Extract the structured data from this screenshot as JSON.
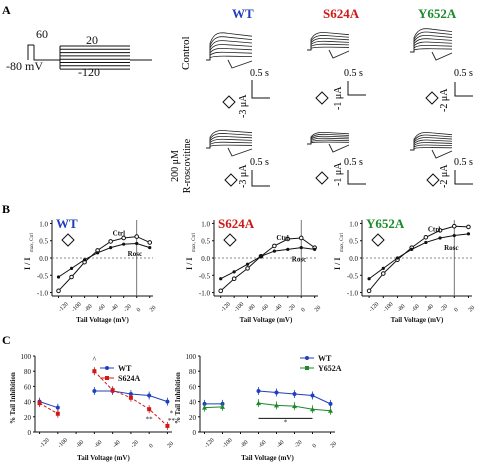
{
  "panel_labels": {
    "a": "A",
    "b": "B",
    "c": "C"
  },
  "protocol": {
    "hold_label": "-80 mV",
    "step_label": "60",
    "tail_top_label": "20",
    "tail_bottom_label": "-120"
  },
  "columns": {
    "wt": "WT",
    "s624a": "S624A",
    "y652a": "Y652A"
  },
  "colors": {
    "wt": "#1f3fbf",
    "s624a": "#d01818",
    "y652a": "#1a8a2a",
    "ink": "#111111"
  },
  "rows": {
    "control": "Control",
    "rosc_line1": "200 μM",
    "rosc_line2": "R-roscovitine"
  },
  "scale_bars": {
    "time": "0.5 s",
    "wt_current": "-3 μA",
    "s624a_current": "-1 μA",
    "y652a_current": "-2 μA"
  },
  "panel_b": {
    "ylabel": "I / I",
    "ylabel_sub": "max, Ctrl",
    "xlabel": "Tail Voltage (mV)",
    "ctrl_label": "Ctrl",
    "rosc_label": "Rosc",
    "y_ticks": [
      "1.0",
      "0.5",
      "0.0",
      "-0.5",
      "-1.0"
    ],
    "x_ticks": [
      "-120",
      "-100",
      "-80",
      "-60",
      "-40",
      "-20",
      "0",
      "20"
    ]
  },
  "panel_c": {
    "ylabel": "% Tail Inhibition",
    "xlabel": "Tail Voltage (mV)",
    "y_ticks": [
      "100",
      "80",
      "60",
      "40",
      "20",
      "0"
    ],
    "x_ticks": [
      "-120",
      "-100",
      "-80",
      "-60",
      "-40",
      "-20",
      "0",
      "20"
    ],
    "left_legend": [
      "WT",
      "S624A"
    ],
    "right_legend": [
      "WT",
      "Y652A"
    ],
    "significance": {
      "caret": "^",
      "single": "*",
      "double": "**",
      "triple": "**"
    }
  },
  "chart_data": [
    {
      "type": "line",
      "title": "WT",
      "xlabel": "Tail Voltage (mV)",
      "ylabel": "I / I max, Ctrl",
      "xlim": [
        -130,
        25
      ],
      "ylim": [
        -1.1,
        1.1
      ],
      "x": [
        -120,
        -100,
        -80,
        -60,
        -40,
        -20,
        0,
        20
      ],
      "series": [
        {
          "name": "Ctrl",
          "values": [
            -0.95,
            -0.55,
            -0.12,
            0.22,
            0.48,
            0.58,
            0.62,
            0.45
          ]
        },
        {
          "name": "Rosc",
          "values": [
            -0.55,
            -0.3,
            -0.05,
            0.15,
            0.3,
            0.4,
            0.42,
            0.3
          ]
        }
      ]
    },
    {
      "type": "line",
      "title": "S624A",
      "xlabel": "Tail Voltage (mV)",
      "ylabel": "I / I max, Ctrl",
      "xlim": [
        -130,
        25
      ],
      "ylim": [
        -1.1,
        1.1
      ],
      "x": [
        -120,
        -100,
        -80,
        -60,
        -40,
        -20,
        0,
        20
      ],
      "series": [
        {
          "name": "Ctrl",
          "values": [
            -0.95,
            -0.6,
            -0.3,
            0.05,
            0.35,
            0.55,
            0.58,
            0.3
          ]
        },
        {
          "name": "Rosc",
          "values": [
            -0.6,
            -0.4,
            -0.18,
            0.05,
            0.2,
            0.25,
            0.3,
            0.25
          ]
        }
      ]
    },
    {
      "type": "line",
      "title": "Y652A",
      "xlabel": "Tail Voltage (mV)",
      "ylabel": "I / I max, Ctrl",
      "xlim": [
        -130,
        25
      ],
      "ylim": [
        -1.1,
        1.1
      ],
      "x": [
        -120,
        -100,
        -80,
        -60,
        -40,
        -20,
        0,
        20
      ],
      "series": [
        {
          "name": "Ctrl",
          "values": [
            -0.95,
            -0.45,
            -0.05,
            0.3,
            0.6,
            0.8,
            0.92,
            0.9
          ]
        },
        {
          "name": "Rosc",
          "values": [
            -0.6,
            -0.3,
            0.0,
            0.25,
            0.45,
            0.58,
            0.65,
            0.7
          ]
        }
      ]
    },
    {
      "type": "line",
      "title": "",
      "xlabel": "Tail Voltage (mV)",
      "ylabel": "% Tail Inhibition",
      "xlim": [
        -125,
        25
      ],
      "ylim": [
        0,
        100
      ],
      "x": [
        -120,
        -100,
        -60,
        -40,
        -20,
        0,
        20
      ],
      "series": [
        {
          "name": "WT",
          "values": [
            40,
            32,
            54,
            54,
            50,
            48,
            40
          ]
        },
        {
          "name": "S624A",
          "values": [
            38,
            24,
            80,
            55,
            45,
            30,
            8
          ]
        }
      ]
    },
    {
      "type": "line",
      "title": "",
      "xlabel": "Tail Voltage (mV)",
      "ylabel": "% Tail Inhibition",
      "xlim": [
        -125,
        25
      ],
      "ylim": [
        0,
        100
      ],
      "x": [
        -120,
        -100,
        -60,
        -40,
        -20,
        0,
        20
      ],
      "series": [
        {
          "name": "WT",
          "values": [
            37,
            37,
            54,
            52,
            50,
            48,
            37
          ]
        },
        {
          "name": "Y652A",
          "values": [
            32,
            33,
            38,
            35,
            34,
            30,
            28
          ]
        }
      ]
    }
  ]
}
